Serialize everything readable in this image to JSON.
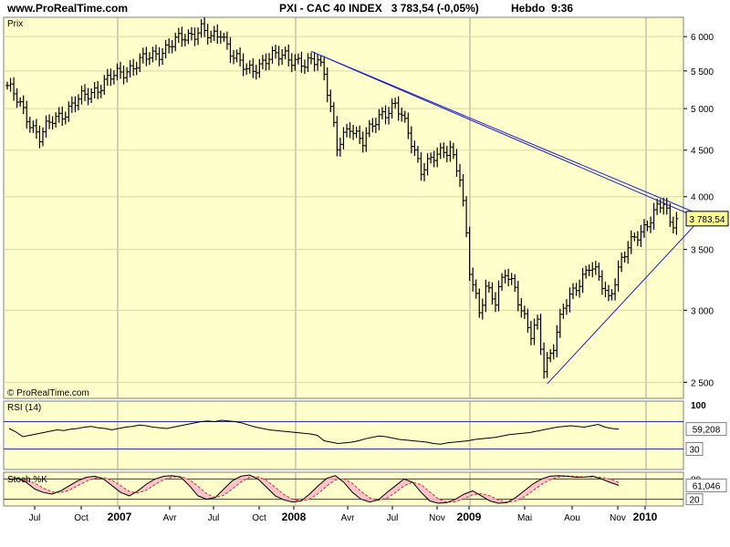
{
  "header": {
    "site": "www.ProRealTime.com",
    "title": "PXI - CAC 40 INDEX",
    "quote": "3 783,54 (-0,05%)",
    "period": "Hebdo",
    "time": "9:36"
  },
  "chart_data": [
    {
      "type": "ohlc-bar",
      "panel": "price",
      "label": "Prix",
      "watermark": "© ProRealTime.com",
      "last_value_label": "3 783,54",
      "last_value": 3783.54,
      "y_scale": "log",
      "ylim": [
        2400,
        6300
      ],
      "y_ticks": [
        {
          "v": 6000,
          "label": "6 000"
        },
        {
          "v": 5500,
          "label": "5 500"
        },
        {
          "v": 5000,
          "label": "5 000"
        },
        {
          "v": 4500,
          "label": "4 500"
        },
        {
          "v": 4000,
          "label": "4 000"
        },
        {
          "v": 3500,
          "label": "3 500"
        },
        {
          "v": 3000,
          "label": "3 000"
        },
        {
          "v": 2500,
          "label": "2 500"
        }
      ],
      "x_ticks": [
        {
          "label": "Jul",
          "bold": false
        },
        {
          "label": "Oct",
          "bold": false
        },
        {
          "label": "2007",
          "bold": true
        },
        {
          "label": "Avr",
          "bold": false
        },
        {
          "label": "Jul",
          "bold": false
        },
        {
          "label": "Oct",
          "bold": false
        },
        {
          "label": "2008",
          "bold": true
        },
        {
          "label": "Avr",
          "bold": false
        },
        {
          "label": "Jul",
          "bold": false
        },
        {
          "label": "Nov",
          "bold": false
        },
        {
          "label": "2009",
          "bold": true
        },
        {
          "label": "Mai",
          "bold": false
        },
        {
          "label": "Aou",
          "bold": false
        },
        {
          "label": "Nov",
          "bold": false
        },
        {
          "label": "2010",
          "bold": true
        }
      ],
      "anchors": [
        [
          0,
          5300
        ],
        [
          6,
          4900
        ],
        [
          10,
          4650
        ],
        [
          14,
          4850
        ],
        [
          22,
          5100
        ],
        [
          32,
          5400
        ],
        [
          40,
          5600
        ],
        [
          48,
          5800
        ],
        [
          55,
          6000
        ],
        [
          60,
          6120
        ],
        [
          63,
          5950
        ],
        [
          66,
          6080
        ],
        [
          70,
          5700
        ],
        [
          74,
          5500
        ],
        [
          80,
          5650
        ],
        [
          86,
          5750
        ],
        [
          92,
          5550
        ],
        [
          96,
          5700
        ],
        [
          98,
          5500
        ],
        [
          102,
          4500
        ],
        [
          106,
          4800
        ],
        [
          110,
          4600
        ],
        [
          116,
          4950
        ],
        [
          120,
          5050
        ],
        [
          124,
          4700
        ],
        [
          128,
          4300
        ],
        [
          132,
          4400
        ],
        [
          137,
          4550
        ],
        [
          140,
          4200
        ],
        [
          143,
          3300
        ],
        [
          146,
          3000
        ],
        [
          148,
          3200
        ],
        [
          151,
          3050
        ],
        [
          154,
          3300
        ],
        [
          157,
          3200
        ],
        [
          159,
          3000
        ],
        [
          162,
          2800
        ],
        [
          164,
          2900
        ],
        [
          166,
          2600
        ],
        [
          169,
          2750
        ],
        [
          172,
          3000
        ],
        [
          176,
          3200
        ],
        [
          180,
          3350
        ],
        [
          183,
          3250
        ],
        [
          186,
          3100
        ],
        [
          190,
          3400
        ],
        [
          194,
          3600
        ],
        [
          198,
          3750
        ],
        [
          201,
          3870
        ],
        [
          203,
          3920
        ],
        [
          205,
          3750
        ],
        [
          207,
          3783
        ]
      ],
      "trendlines": [
        {
          "from": [
            94,
            5780
          ],
          "to": [
            219,
            3720
          ]
        },
        {
          "from": [
            97,
            5720
          ],
          "to": [
            216,
            3800
          ]
        },
        {
          "from": [
            167,
            2490
          ],
          "to": [
            215,
            3800
          ]
        }
      ],
      "x_slots": 210
    },
    {
      "type": "line",
      "panel": "rsi",
      "label": "RSI (14)",
      "ylim": [
        0,
        100
      ],
      "y_ticks": [
        {
          "v": 100,
          "label": "100",
          "boxed": false
        },
        {
          "v": 30,
          "label": "30",
          "boxed": true
        }
      ],
      "reference_lines": [
        30,
        70
      ],
      "current_label": "59,208",
      "current_value": 59.208,
      "values": [
        60,
        55,
        48,
        50,
        52,
        54,
        56,
        58,
        57,
        59,
        60,
        62,
        63,
        61,
        60,
        58,
        60,
        62,
        63,
        65,
        64,
        62,
        61,
        60,
        62,
        64,
        66,
        68,
        70,
        71,
        70,
        72,
        71,
        70,
        68,
        65,
        62,
        60,
        58,
        57,
        56,
        55,
        54,
        53,
        52,
        50,
        42,
        40,
        38,
        39,
        40,
        42,
        45,
        47,
        49,
        48,
        46,
        44,
        43,
        42,
        41,
        40,
        38,
        37,
        39,
        40,
        41,
        42,
        44,
        45,
        46,
        47,
        49,
        51,
        52,
        53,
        54,
        56,
        58,
        60,
        62,
        63,
        64,
        63,
        62,
        64,
        66,
        62,
        60,
        59
      ]
    },
    {
      "type": "line",
      "panel": "stochastic",
      "label": "Stoch %K",
      "ylim": [
        0,
        100
      ],
      "y_ticks": [
        {
          "v": 80,
          "label": "80",
          "boxed": false
        },
        {
          "v": 20,
          "label": "20",
          "boxed": true
        }
      ],
      "reference_lines": [
        20,
        80
      ],
      "current_label": "61,046",
      "current_value": 61.046,
      "values": [
        78,
        82,
        70,
        50,
        40,
        35,
        45,
        60,
        75,
        85,
        88,
        80,
        60,
        40,
        30,
        45,
        65,
        80,
        88,
        90,
        85,
        60,
        30,
        20,
        25,
        50,
        75,
        88,
        92,
        80,
        55,
        30,
        18,
        12,
        15,
        35,
        60,
        82,
        90,
        70,
        40,
        20,
        12,
        18,
        40,
        60,
        80,
        70,
        40,
        15,
        8,
        10,
        20,
        35,
        45,
        30,
        15,
        8,
        10,
        25,
        45,
        65,
        80,
        88,
        90,
        88,
        85,
        86,
        88,
        80,
        70,
        61
      ]
    }
  ],
  "colors": {
    "panel_bg": "#ffffcc",
    "grid": "#a0a0a0",
    "bars": "#000000",
    "trendline": "#1e1ec8",
    "ref_line": "#3232a0",
    "stoch_fill": "#ffb4c8",
    "stoch_signal": "#d03030",
    "watermark": "#4a4a70",
    "label_box": "#ffff99"
  }
}
